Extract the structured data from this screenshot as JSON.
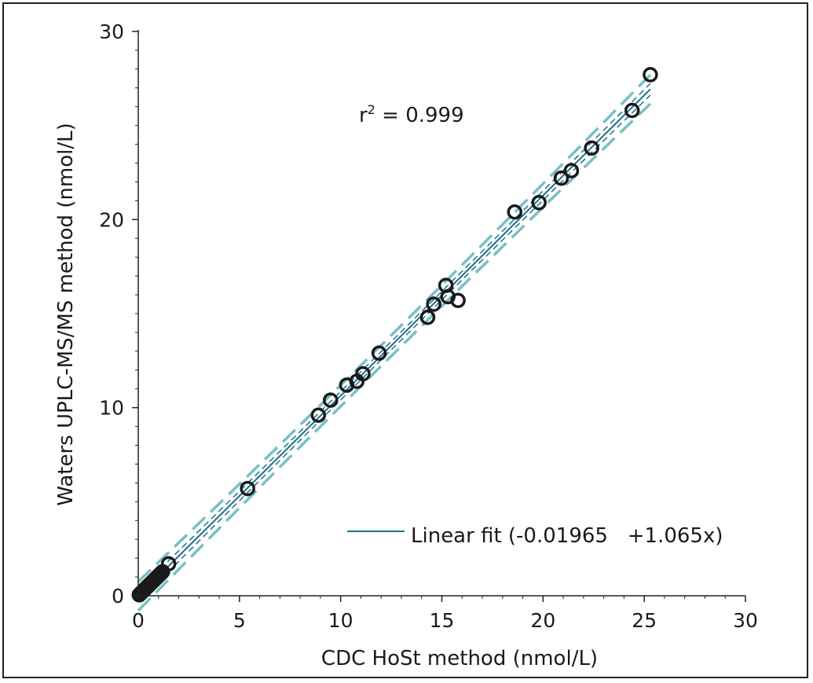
{
  "chart_data": {
    "type": "scatter",
    "title": "",
    "xlabel": "CDC HoSt method (nmol/L)",
    "ylabel": "Waters UPLC-MS/MS method (nmol/L)",
    "xlim": [
      0,
      30
    ],
    "ylim": [
      0,
      30
    ],
    "xticks": [
      "0",
      "5",
      "10",
      "15",
      "20",
      "25",
      "30"
    ],
    "yticks": [
      "0",
      "10",
      "20",
      "30"
    ],
    "grid": false,
    "annotation": {
      "base": "r",
      "superscript": "2",
      "text": " = 0.999"
    },
    "legend": {
      "position": "bottom-right",
      "label": "Linear fit (-0.01965   +1.065x)"
    },
    "fit": {
      "intercept": -0.01965,
      "slope": 1.065,
      "x_range": [
        0,
        25.3
      ]
    },
    "colors": {
      "points": "#1a1a1a",
      "fit_line": "#1f6f8a",
      "confidence_band": "#5fb5b8",
      "prediction_band": "#1f6f8a"
    },
    "series": [
      {
        "x": [
          0.05,
          0.1,
          0.15,
          0.2,
          0.25,
          0.3,
          0.35,
          0.4,
          0.45,
          0.5,
          0.55,
          0.6,
          0.65,
          0.7,
          0.75,
          0.8,
          0.85,
          0.9,
          0.95,
          1.0,
          1.05,
          1.1,
          1.15,
          1.2,
          1.5,
          5.4,
          8.9,
          9.5,
          10.3,
          10.8,
          11.1,
          11.9,
          14.3,
          14.6,
          15.2,
          15.3,
          15.8,
          18.6,
          19.8,
          20.9,
          21.4,
          22.4,
          24.4,
          25.3
        ],
        "y": [
          0.05,
          0.1,
          0.16,
          0.21,
          0.27,
          0.32,
          0.37,
          0.43,
          0.48,
          0.53,
          0.58,
          0.64,
          0.69,
          0.74,
          0.8,
          0.85,
          0.9,
          0.96,
          1.01,
          1.06,
          1.12,
          1.17,
          1.22,
          1.28,
          1.7,
          5.7,
          9.6,
          10.4,
          11.2,
          11.4,
          11.8,
          12.9,
          14.8,
          15.5,
          16.5,
          15.9,
          15.7,
          20.4,
          20.9,
          22.2,
          22.6,
          23.8,
          25.8,
          27.7
        ]
      }
    ]
  }
}
